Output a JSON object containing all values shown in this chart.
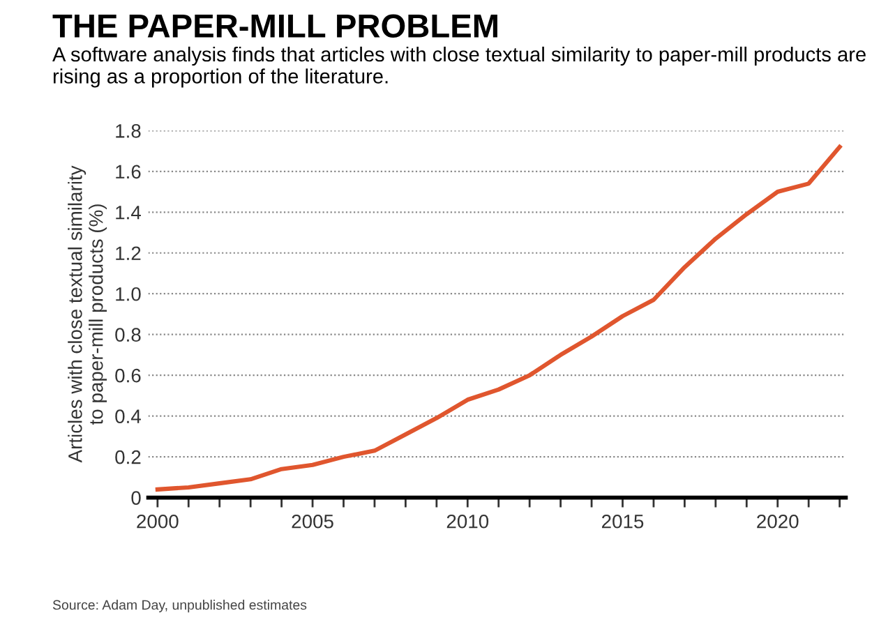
{
  "chart_data": {
    "type": "line",
    "title": "THE PAPER-MILL PROBLEM",
    "subtitle": "A software analysis finds that articles with close textual similarity to paper-mill products are rising as a proportion of the literature.",
    "ylabel": "Articles with close textual similarity\nto paper-mill products (%)",
    "annotations": [
      "Source: Adam Day, unpublished estimates"
    ],
    "x": [
      2000,
      2001,
      2002,
      2003,
      2004,
      2005,
      2006,
      2007,
      2008,
      2009,
      2010,
      2011,
      2012,
      2013,
      2014,
      2015,
      2016,
      2017,
      2018,
      2019,
      2020,
      2021,
      2022
    ],
    "series": [
      {
        "color": "#e0562e",
        "values": [
          0.04,
          0.05,
          0.07,
          0.09,
          0.14,
          0.16,
          0.2,
          0.23,
          0.31,
          0.39,
          0.48,
          0.53,
          0.6,
          0.7,
          0.79,
          0.89,
          0.97,
          1.13,
          1.27,
          1.39,
          1.5,
          1.54,
          1.72
        ]
      }
    ],
    "xlim": [
      1999.7,
      2022.2
    ],
    "xticks": [
      2000,
      {
        "value": 2001,
        "label": null
      },
      {
        "value": 2002,
        "label": null
      },
      {
        "value": 2003,
        "label": null
      },
      {
        "value": 2004,
        "label": null
      },
      2005,
      {
        "value": 2006,
        "label": null
      },
      {
        "value": 2007,
        "label": null
      },
      {
        "value": 2008,
        "label": null
      },
      {
        "value": 2009,
        "label": null
      },
      2010,
      {
        "value": 2011,
        "label": null
      },
      {
        "value": 2012,
        "label": null
      },
      {
        "value": 2013,
        "label": null
      },
      {
        "value": 2014,
        "label": null
      },
      2015,
      {
        "value": 2016,
        "label": null
      },
      {
        "value": 2017,
        "label": null
      },
      {
        "value": 2018,
        "label": null
      },
      {
        "value": 2019,
        "label": null
      },
      2020,
      {
        "value": 2021,
        "label": null
      },
      {
        "value": 2022,
        "label": null
      }
    ],
    "ylim": [
      0,
      1.8
    ],
    "yticks": [
      0,
      0.2,
      0.4,
      0.6,
      0.8,
      {
        "value": 1,
        "label": "1.0"
      },
      1.2,
      1.4,
      1.6,
      1.8
    ],
    "grid": "y",
    "marker": "none",
    "line_style": "solid",
    "legend": false
  }
}
